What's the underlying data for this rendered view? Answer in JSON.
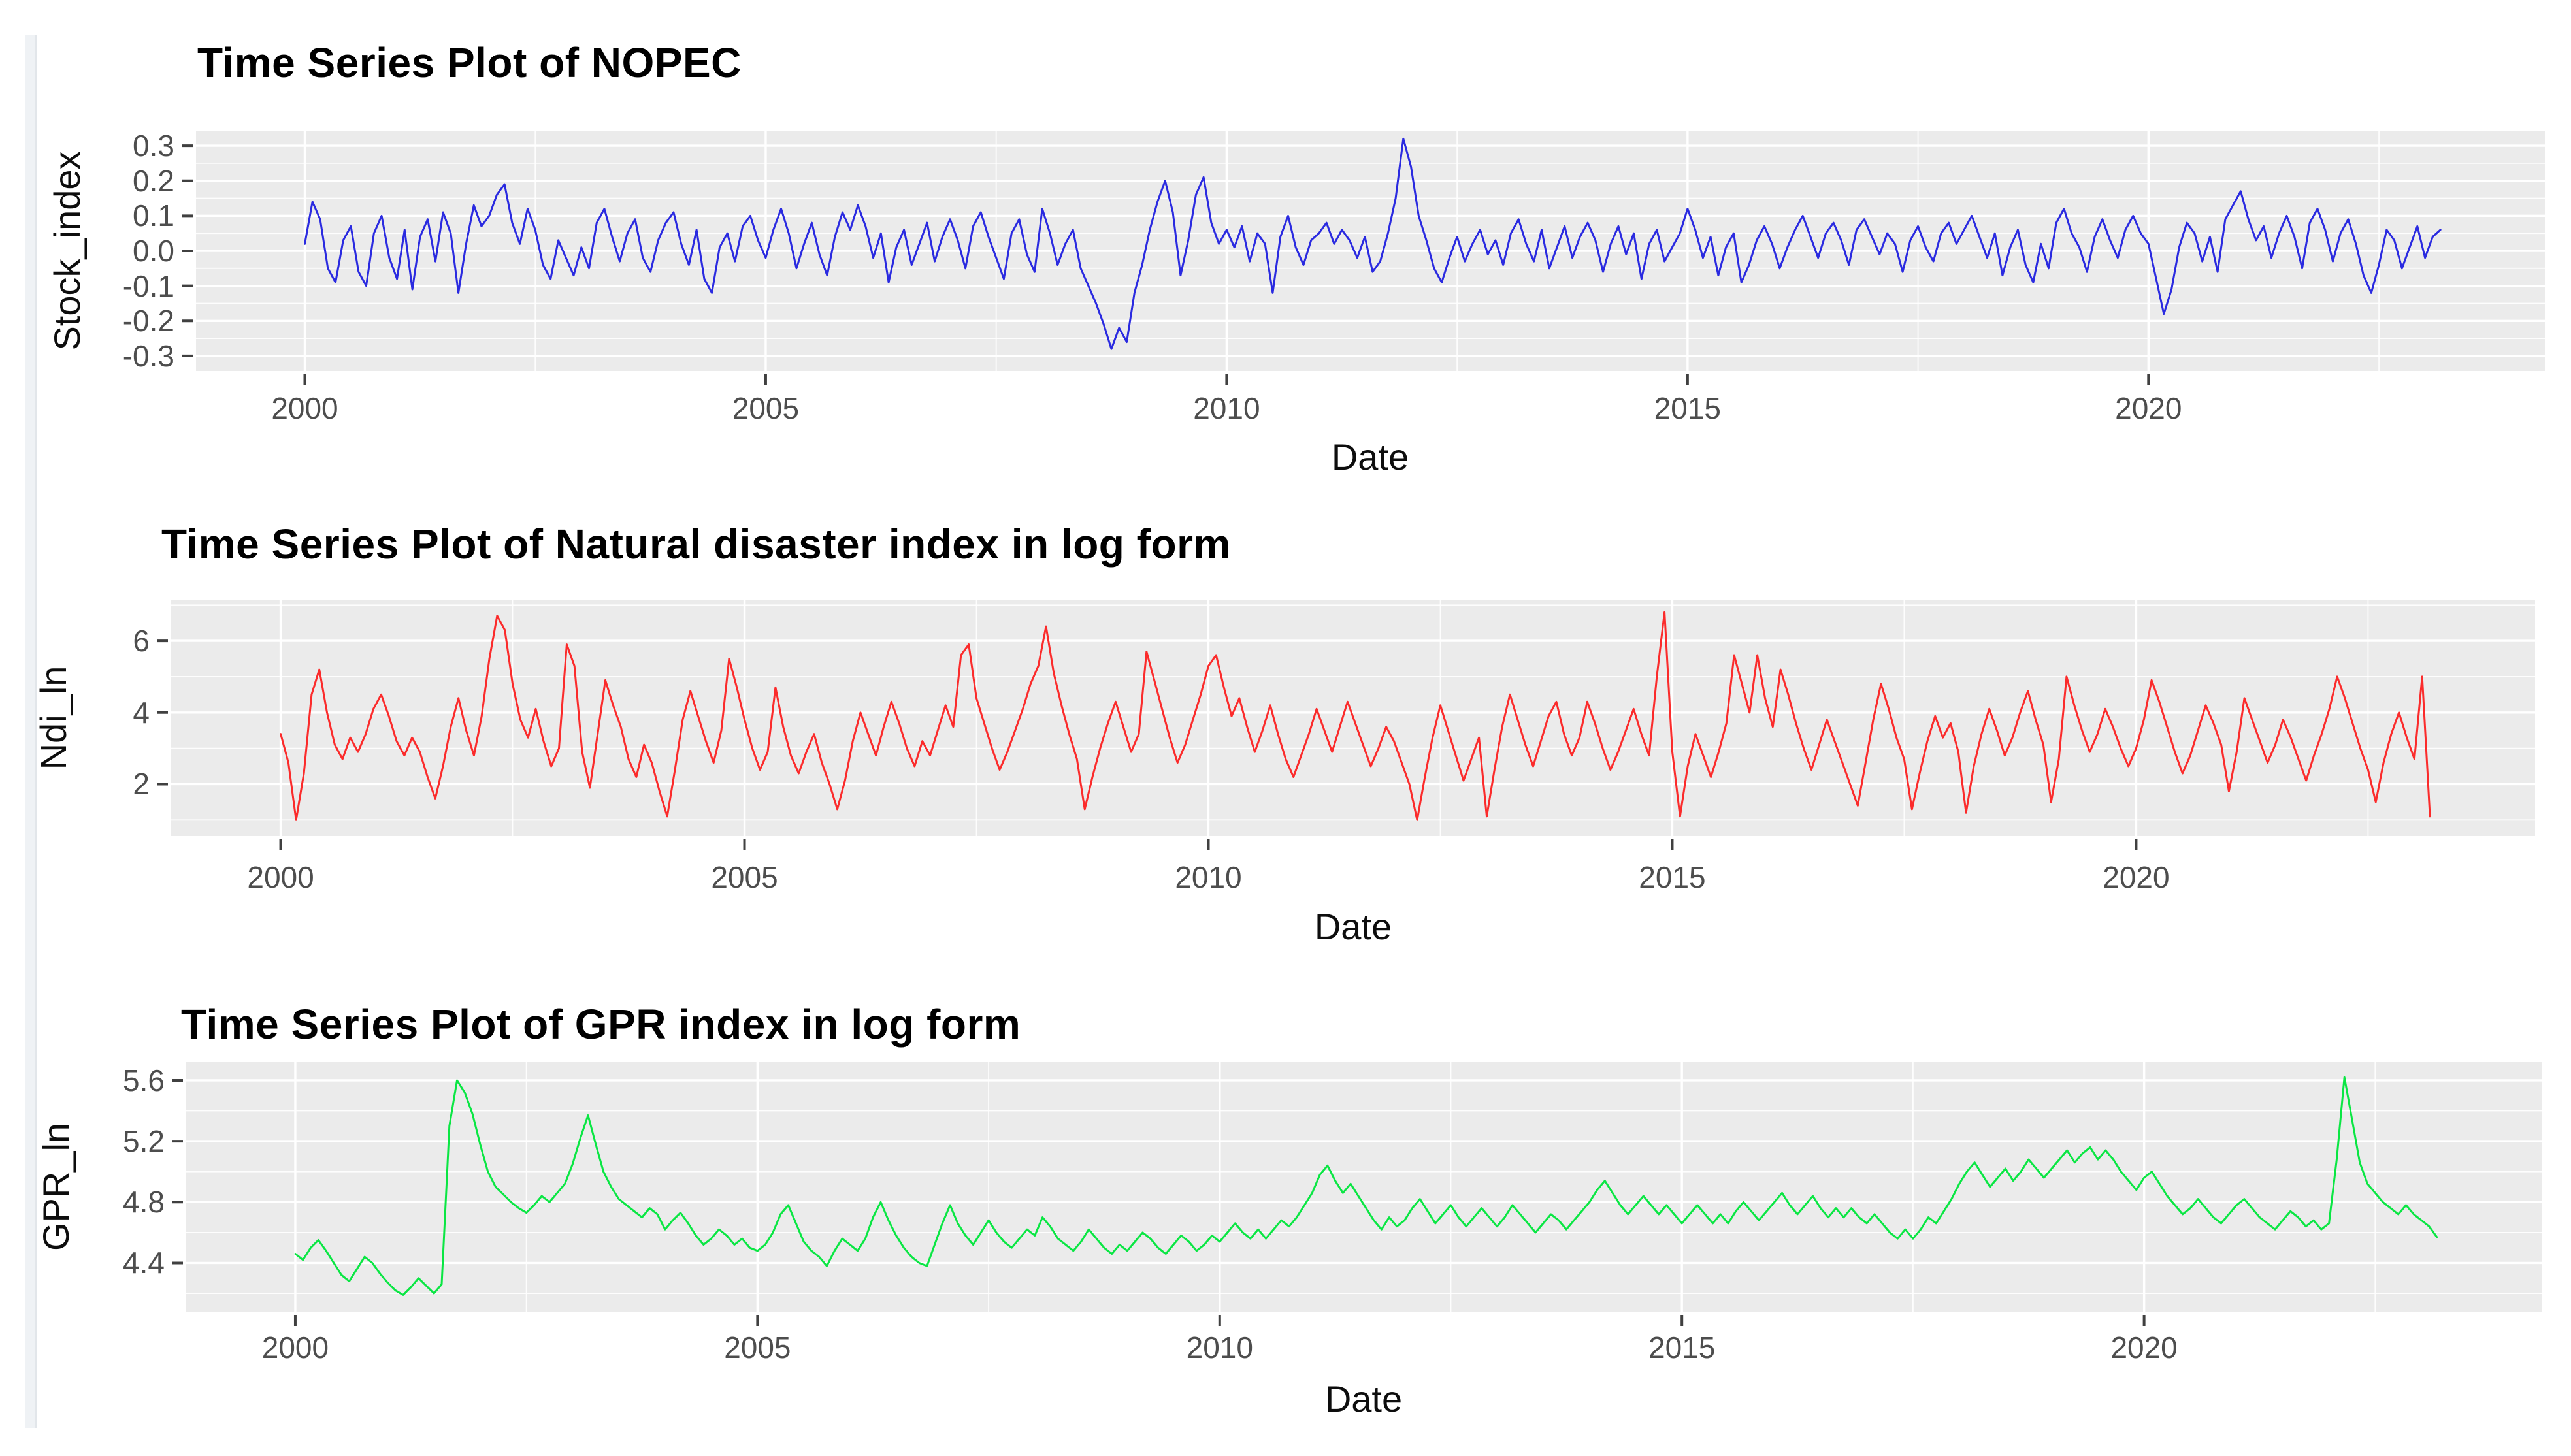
{
  "page": {
    "background": "#ffffff",
    "panel_bg": "#ebebeb",
    "grid_color": "#ffffff",
    "tick_mark_color": "#404040",
    "tick_text_color": "#4d4d4d"
  },
  "chart_data": [
    {
      "type": "line",
      "title": "Time Series Plot of NOPEC",
      "xlabel": "Date",
      "ylabel": "Stock_index",
      "series_name": "Stock_index",
      "color": "#2a2ae0",
      "legend": "none",
      "grid": "on",
      "x_start": 2000.0,
      "x_step": 0.0833333,
      "xlim": [
        1998.82,
        2024.3
      ],
      "ylim": [
        -0.343,
        0.343
      ],
      "x_ticks": [
        2000,
        2005,
        2010,
        2015,
        2020
      ],
      "x_tick_labels": [
        "2000",
        "2005",
        "2010",
        "2015",
        "2020"
      ],
      "x_minor": [
        2002.5,
        2007.5,
        2012.5,
        2017.5,
        2022.5
      ],
      "y_ticks": [
        0.3,
        0.2,
        0.1,
        0.0,
        -0.1,
        -0.2,
        -0.3
      ],
      "y_tick_labels": [
        "0.3",
        "0.2",
        "0.1",
        "0.0",
        "-0.1",
        "-0.2",
        "-0.3"
      ],
      "y_minor": [
        0.25,
        0.15,
        0.05,
        -0.05,
        -0.15,
        -0.25
      ],
      "values": [
        0.02,
        0.14,
        0.09,
        -0.05,
        -0.09,
        0.03,
        0.07,
        -0.06,
        -0.1,
        0.05,
        0.1,
        -0.02,
        -0.08,
        0.06,
        -0.11,
        0.04,
        0.09,
        -0.03,
        0.11,
        0.05,
        -0.12,
        0.02,
        0.13,
        0.07,
        0.1,
        0.16,
        0.19,
        0.08,
        0.02,
        0.12,
        0.06,
        -0.04,
        -0.08,
        0.03,
        -0.02,
        -0.07,
        0.01,
        -0.05,
        0.08,
        0.12,
        0.04,
        -0.03,
        0.05,
        0.09,
        -0.02,
        -0.06,
        0.03,
        0.08,
        0.11,
        0.02,
        -0.04,
        0.06,
        -0.08,
        -0.12,
        0.01,
        0.05,
        -0.03,
        0.07,
        0.1,
        0.03,
        -0.02,
        0.06,
        0.12,
        0.05,
        -0.05,
        0.02,
        0.08,
        -0.01,
        -0.07,
        0.04,
        0.11,
        0.06,
        0.13,
        0.07,
        -0.02,
        0.05,
        -0.09,
        0.01,
        0.06,
        -0.04,
        0.02,
        0.08,
        -0.03,
        0.04,
        0.09,
        0.03,
        -0.05,
        0.07,
        0.11,
        0.04,
        -0.02,
        -0.08,
        0.05,
        0.09,
        -0.01,
        -0.06,
        0.12,
        0.05,
        -0.04,
        0.02,
        0.06,
        -0.05,
        -0.1,
        -0.15,
        -0.21,
        -0.28,
        -0.22,
        -0.26,
        -0.12,
        -0.04,
        0.06,
        0.14,
        0.2,
        0.11,
        -0.07,
        0.03,
        0.16,
        0.21,
        0.08,
        0.02,
        0.06,
        0.01,
        0.07,
        -0.03,
        0.05,
        0.02,
        -0.12,
        0.04,
        0.1,
        0.01,
        -0.04,
        0.03,
        0.05,
        0.08,
        0.02,
        0.06,
        0.03,
        -0.02,
        0.04,
        -0.06,
        -0.03,
        0.05,
        0.15,
        0.32,
        0.24,
        0.1,
        0.03,
        -0.05,
        -0.09,
        -0.02,
        0.04,
        -0.03,
        0.02,
        0.06,
        -0.01,
        0.03,
        -0.04,
        0.05,
        0.09,
        0.02,
        -0.03,
        0.06,
        -0.05,
        0.01,
        0.07,
        -0.02,
        0.04,
        0.08,
        0.03,
        -0.06,
        0.02,
        0.07,
        -0.01,
        0.05,
        -0.08,
        0.02,
        0.06,
        -0.03,
        0.01,
        0.05,
        0.12,
        0.06,
        -0.02,
        0.04,
        -0.07,
        0.01,
        0.05,
        -0.09,
        -0.04,
        0.03,
        0.07,
        0.02,
        -0.05,
        0.01,
        0.06,
        0.1,
        0.04,
        -0.02,
        0.05,
        0.08,
        0.03,
        -0.04,
        0.06,
        0.09,
        0.04,
        -0.01,
        0.05,
        0.02,
        -0.06,
        0.03,
        0.07,
        0.01,
        -0.03,
        0.05,
        0.08,
        0.02,
        0.06,
        0.1,
        0.04,
        -0.02,
        0.05,
        -0.07,
        0.01,
        0.06,
        -0.04,
        -0.09,
        0.02,
        -0.05,
        0.08,
        0.12,
        0.05,
        0.01,
        -0.06,
        0.04,
        0.09,
        0.03,
        -0.02,
        0.06,
        0.1,
        0.05,
        0.02,
        -0.08,
        -0.18,
        -0.11,
        0.01,
        0.08,
        0.05,
        -0.03,
        0.04,
        -0.06,
        0.09,
        0.13,
        0.17,
        0.09,
        0.03,
        0.07,
        -0.02,
        0.05,
        0.1,
        0.04,
        -0.05,
        0.08,
        0.12,
        0.06,
        -0.03,
        0.05,
        0.09,
        0.02,
        -0.07,
        -0.12,
        -0.04,
        0.06,
        0.03,
        -0.05,
        0.01,
        0.07,
        -0.02,
        0.04,
        0.06
      ]
    },
    {
      "type": "line",
      "title": "Time Series Plot of Natural disaster index in log form",
      "xlabel": "Date",
      "ylabel": "Ndi_ln",
      "series_name": "Ndi_ln",
      "color": "#fb2b2b",
      "legend": "none",
      "grid": "on",
      "x_start": 2000.0,
      "x_step": 0.0833333,
      "xlim": [
        1998.82,
        2024.3
      ],
      "ylim": [
        0.55,
        7.15
      ],
      "x_ticks": [
        2000,
        2005,
        2010,
        2015,
        2020
      ],
      "x_tick_labels": [
        "2000",
        "2005",
        "2010",
        "2015",
        "2020"
      ],
      "x_minor": [
        2002.5,
        2007.5,
        2012.5,
        2017.5,
        2022.5
      ],
      "y_ticks": [
        6,
        4,
        2
      ],
      "y_tick_labels": [
        "6",
        "4",
        "2"
      ],
      "y_minor": [
        7,
        5,
        3,
        1
      ],
      "values": [
        3.4,
        2.6,
        1.0,
        2.3,
        4.5,
        5.2,
        4.0,
        3.1,
        2.7,
        3.3,
        2.9,
        3.4,
        4.1,
        4.5,
        3.9,
        3.2,
        2.8,
        3.3,
        2.9,
        2.2,
        1.6,
        2.5,
        3.6,
        4.4,
        3.5,
        2.8,
        3.9,
        5.5,
        6.7,
        6.3,
        4.8,
        3.8,
        3.3,
        4.1,
        3.2,
        2.5,
        3.0,
        5.9,
        5.3,
        2.9,
        1.9,
        3.4,
        4.9,
        4.2,
        3.6,
        2.7,
        2.2,
        3.1,
        2.6,
        1.8,
        1.1,
        2.4,
        3.8,
        4.6,
        3.9,
        3.2,
        2.6,
        3.5,
        5.5,
        4.7,
        3.8,
        3.0,
        2.4,
        2.9,
        4.7,
        3.6,
        2.8,
        2.3,
        2.9,
        3.4,
        2.6,
        2.0,
        1.3,
        2.1,
        3.2,
        4.0,
        3.4,
        2.8,
        3.6,
        4.3,
        3.7,
        3.0,
        2.5,
        3.2,
        2.8,
        3.5,
        4.2,
        3.6,
        5.6,
        5.9,
        4.4,
        3.7,
        3.0,
        2.4,
        2.9,
        3.5,
        4.1,
        4.8,
        5.3,
        6.4,
        5.1,
        4.2,
        3.4,
        2.7,
        1.3,
        2.2,
        3.0,
        3.7,
        4.3,
        3.6,
        2.9,
        3.4,
        5.7,
        4.9,
        4.1,
        3.3,
        2.6,
        3.1,
        3.8,
        4.5,
        5.3,
        5.6,
        4.7,
        3.9,
        4.4,
        3.6,
        2.9,
        3.5,
        4.2,
        3.4,
        2.7,
        2.2,
        2.8,
        3.4,
        4.1,
        3.5,
        2.9,
        3.6,
        4.3,
        3.7,
        3.1,
        2.5,
        3.0,
        3.6,
        3.2,
        2.6,
        2.0,
        1.0,
        2.2,
        3.3,
        4.2,
        3.5,
        2.8,
        2.1,
        2.7,
        3.3,
        1.1,
        2.4,
        3.6,
        4.5,
        3.8,
        3.1,
        2.5,
        3.2,
        3.9,
        4.3,
        3.4,
        2.8,
        3.3,
        4.3,
        3.7,
        3.0,
        2.4,
        2.9,
        3.5,
        4.1,
        3.4,
        2.8,
        5.0,
        6.8,
        2.9,
        1.1,
        2.5,
        3.4,
        2.8,
        2.2,
        2.9,
        3.7,
        5.6,
        4.8,
        4.0,
        5.6,
        4.4,
        3.6,
        5.2,
        4.5,
        3.7,
        3.0,
        2.4,
        3.1,
        3.8,
        3.2,
        2.6,
        2.0,
        1.4,
        2.6,
        3.8,
        4.8,
        4.1,
        3.3,
        2.7,
        1.3,
        2.3,
        3.2,
        3.9,
        3.3,
        3.7,
        2.9,
        1.2,
        2.5,
        3.4,
        4.1,
        3.5,
        2.8,
        3.3,
        4.0,
        4.6,
        3.8,
        3.1,
        1.5,
        2.7,
        5.0,
        4.2,
        3.5,
        2.9,
        3.4,
        4.1,
        3.6,
        3.0,
        2.5,
        3.0,
        3.8,
        4.9,
        4.3,
        3.6,
        2.9,
        2.3,
        2.8,
        3.5,
        4.2,
        3.7,
        3.1,
        1.8,
        2.9,
        4.4,
        3.8,
        3.2,
        2.6,
        3.1,
        3.8,
        3.3,
        2.7,
        2.1,
        2.8,
        3.4,
        4.1,
        5.0,
        4.4,
        3.7,
        3.0,
        2.4,
        1.5,
        2.6,
        3.4,
        4.0,
        3.3,
        2.7,
        5.0,
        1.1
      ]
    },
    {
      "type": "line",
      "title": "Time Series Plot of GPR index in log form",
      "xlabel": "Date",
      "ylabel": "GPR_ln",
      "series_name": "GPR_ln",
      "color": "#0ae643",
      "legend": "none",
      "grid": "on",
      "x_start": 2000.0,
      "x_step": 0.0833333,
      "xlim": [
        1998.82,
        2024.3
      ],
      "ylim": [
        4.08,
        5.72
      ],
      "x_ticks": [
        2000,
        2005,
        2010,
        2015,
        2020
      ],
      "x_tick_labels": [
        "2000",
        "2005",
        "2010",
        "2015",
        "2020"
      ],
      "x_minor": [
        2002.5,
        2007.5,
        2012.5,
        2017.5,
        2022.5
      ],
      "y_ticks": [
        5.6,
        5.2,
        4.8,
        4.4
      ],
      "y_tick_labels": [
        "5.6",
        "5.2",
        "4.8",
        "4.4"
      ],
      "y_minor": [
        5.4,
        5.0,
        4.6,
        4.2
      ],
      "values": [
        4.46,
        4.42,
        4.5,
        4.55,
        4.48,
        4.4,
        4.32,
        4.28,
        4.36,
        4.44,
        4.4,
        4.33,
        4.27,
        4.22,
        4.19,
        4.24,
        4.3,
        4.25,
        4.2,
        4.26,
        5.3,
        5.6,
        5.52,
        5.38,
        5.18,
        5.0,
        4.9,
        4.85,
        4.8,
        4.76,
        4.73,
        4.78,
        4.84,
        4.8,
        4.86,
        4.92,
        5.05,
        5.22,
        5.37,
        5.18,
        5.0,
        4.9,
        4.82,
        4.78,
        4.74,
        4.7,
        4.76,
        4.72,
        4.62,
        4.68,
        4.73,
        4.66,
        4.58,
        4.52,
        4.56,
        4.62,
        4.58,
        4.52,
        4.56,
        4.5,
        4.48,
        4.52,
        4.6,
        4.72,
        4.78,
        4.66,
        4.54,
        4.48,
        4.44,
        4.38,
        4.48,
        4.56,
        4.52,
        4.48,
        4.56,
        4.7,
        4.8,
        4.68,
        4.58,
        4.5,
        4.44,
        4.4,
        4.38,
        4.52,
        4.66,
        4.78,
        4.66,
        4.58,
        4.52,
        4.6,
        4.68,
        4.6,
        4.54,
        4.5,
        4.56,
        4.62,
        4.58,
        4.7,
        4.64,
        4.56,
        4.52,
        4.48,
        4.54,
        4.62,
        4.56,
        4.5,
        4.46,
        4.52,
        4.48,
        4.54,
        4.6,
        4.56,
        4.5,
        4.46,
        4.52,
        4.58,
        4.54,
        4.48,
        4.52,
        4.58,
        4.54,
        4.6,
        4.66,
        4.6,
        4.56,
        4.62,
        4.56,
        4.62,
        4.68,
        4.64,
        4.7,
        4.78,
        4.86,
        4.98,
        5.04,
        4.94,
        4.86,
        4.92,
        4.84,
        4.76,
        4.68,
        4.62,
        4.7,
        4.64,
        4.68,
        4.76,
        4.82,
        4.74,
        4.66,
        4.72,
        4.78,
        4.7,
        4.64,
        4.7,
        4.76,
        4.7,
        4.64,
        4.7,
        4.78,
        4.72,
        4.66,
        4.6,
        4.66,
        4.72,
        4.68,
        4.62,
        4.68,
        4.74,
        4.8,
        4.88,
        4.94,
        4.86,
        4.78,
        4.72,
        4.78,
        4.84,
        4.78,
        4.72,
        4.78,
        4.72,
        4.66,
        4.72,
        4.78,
        4.72,
        4.66,
        4.72,
        4.66,
        4.74,
        4.8,
        4.74,
        4.68,
        4.74,
        4.8,
        4.86,
        4.78,
        4.72,
        4.78,
        4.84,
        4.76,
        4.7,
        4.76,
        4.7,
        4.76,
        4.7,
        4.66,
        4.72,
        4.66,
        4.6,
        4.56,
        4.62,
        4.56,
        4.62,
        4.7,
        4.66,
        4.74,
        4.82,
        4.92,
        5.0,
        5.06,
        4.98,
        4.9,
        4.96,
        5.02,
        4.94,
        5.0,
        5.08,
        5.02,
        4.96,
        5.02,
        5.08,
        5.14,
        5.06,
        5.12,
        5.16,
        5.08,
        5.14,
        5.08,
        5.0,
        4.94,
        4.88,
        4.96,
        5.0,
        4.92,
        4.84,
        4.78,
        4.72,
        4.76,
        4.82,
        4.76,
        4.7,
        4.66,
        4.72,
        4.78,
        4.82,
        4.76,
        4.7,
        4.66,
        4.62,
        4.68,
        4.74,
        4.7,
        4.64,
        4.68,
        4.62,
        4.66,
        5.08,
        5.62,
        5.34,
        5.06,
        4.92,
        4.86,
        4.8,
        4.76,
        4.72,
        4.78,
        4.72,
        4.68,
        4.64,
        4.57
      ]
    }
  ]
}
